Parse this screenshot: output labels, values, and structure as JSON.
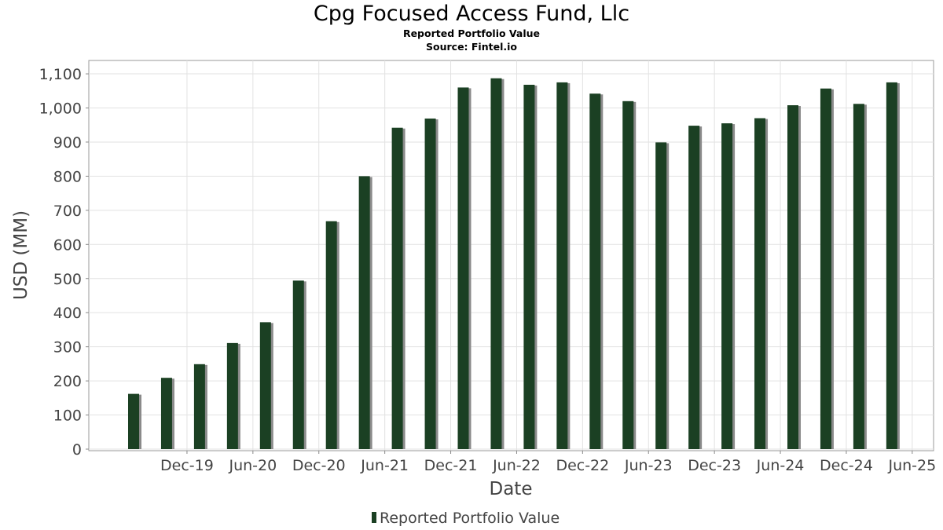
{
  "header": {
    "title": "Cpg Focused Access Fund, Llc",
    "subtitle": "Reported Portfolio Value",
    "source": "Source: Fintel.io"
  },
  "colors": {
    "bar": "#1b4023",
    "bar_shadow": "#8a8a8a",
    "grid": "#e2e2e2",
    "frame": "#9a9a9a"
  },
  "chart_data": {
    "type": "bar",
    "xlabel": "Date",
    "ylabel": "USD (MM)",
    "ylim": [
      0,
      1130
    ],
    "yticks": [
      0,
      100,
      200,
      300,
      400,
      500,
      600,
      700,
      800,
      900,
      1000,
      1100
    ],
    "ytick_labels": [
      "0",
      "100",
      "200",
      "300",
      "400",
      "500",
      "600",
      "700",
      "800",
      "900",
      "1,000",
      "1,100"
    ],
    "xtick_labels": [
      "Dec-19",
      "Jun-20",
      "Dec-20",
      "Jun-21",
      "Dec-21",
      "Jun-22",
      "Dec-22",
      "Jun-23",
      "Dec-23",
      "Jun-24",
      "Dec-24",
      "Jun-25"
    ],
    "grid": true,
    "legend": {
      "position": "bottom",
      "entries": [
        "Reported Portfolio Value"
      ]
    },
    "series": [
      {
        "name": "Reported Portfolio Value",
        "x": [
          "2019-09",
          "2019-12",
          "2020-03",
          "2020-06",
          "2020-09",
          "2020-12",
          "2021-03",
          "2021-06",
          "2021-09",
          "2021-12",
          "2022-03",
          "2022-06",
          "2022-09",
          "2022-12",
          "2023-03",
          "2023-06",
          "2023-09",
          "2023-12",
          "2024-03",
          "2024-06",
          "2024-09",
          "2024-12",
          "2025-03",
          "2025-06"
        ],
        "values": [
          162,
          209,
          249,
          311,
          372,
          494,
          668,
          800,
          942,
          969,
          1060,
          1087,
          1068,
          1075,
          1042,
          1020,
          899,
          948,
          955,
          970,
          1008,
          1057,
          1012,
          1075
        ]
      }
    ]
  }
}
